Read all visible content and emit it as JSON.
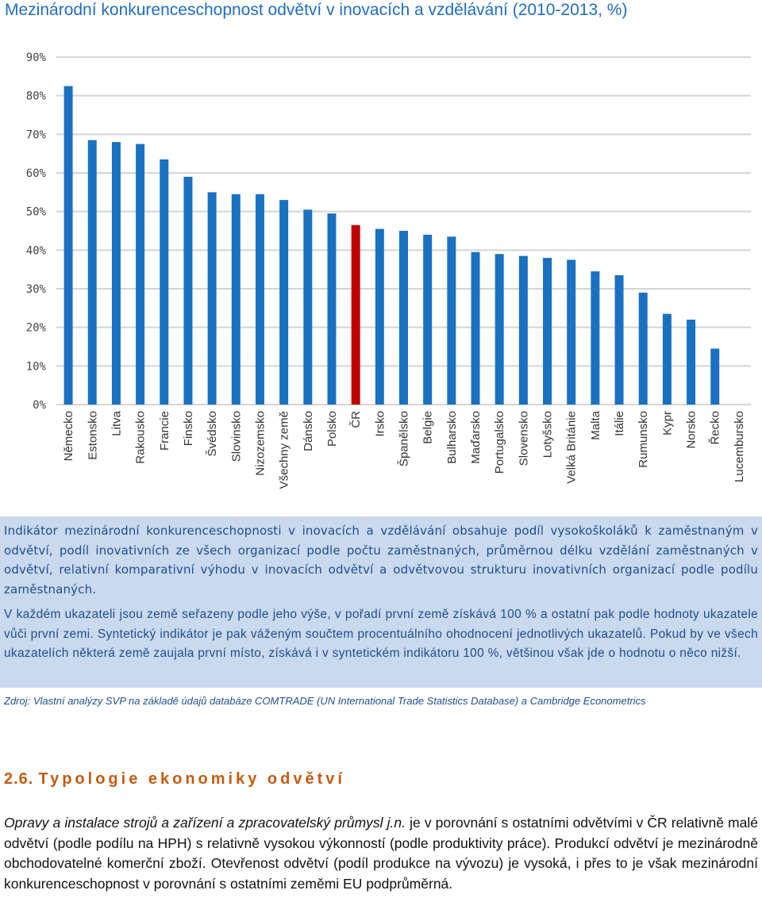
{
  "colors": {
    "title": "#1f6dbf",
    "bar": "#1a71c2",
    "bar_highlight": "#c00000",
    "info_bg": "#c9d9ee",
    "info_text": "#1f4e8c",
    "heading": "#c55a11"
  },
  "chart_data": {
    "type": "bar",
    "title": "Mezinárodní konkurenceschopnost odvětví v inovacích a vzdělávání (2010-2013, %)",
    "xlabel": "",
    "ylabel": "",
    "ylim": [
      0,
      90
    ],
    "yticks": [
      "0%",
      "10%",
      "20%",
      "30%",
      "40%",
      "50%",
      "60%",
      "70%",
      "80%",
      "90%"
    ],
    "grid": true,
    "categories": [
      "Německo",
      "Estonsko",
      "Litva",
      "Rakousko",
      "Francie",
      "Finsko",
      "Švédsko",
      "Slovinsko",
      "Nizozemsko",
      "Všechny země",
      "Dánsko",
      "Polsko",
      "ČR",
      "Irsko",
      "Španělsko",
      "Belgie",
      "Bulharsko",
      "Maďarsko",
      "Portugalsko",
      "Slovensko",
      "Lotyšsko",
      "Velká Británie",
      "Malta",
      "Itálie",
      "Rumunsko",
      "Kypr",
      "Norsko",
      "Řecko",
      "Lucembursko"
    ],
    "values": [
      82.5,
      68.5,
      68,
      67.5,
      63.5,
      59,
      55,
      54.5,
      54.5,
      53,
      50.5,
      49.5,
      46.5,
      45.5,
      45,
      44,
      43.5,
      39.5,
      39,
      38.5,
      38,
      37.5,
      34.5,
      33.5,
      29,
      23.5,
      22,
      14.5,
      0
    ],
    "highlight": "ČR"
  },
  "info": {
    "paragraph1": "Indikátor mezinárodní konkurenceschopnosti v inovacích a vzdělávání obsahuje podíl vysokoškoláků k zaměstnaným v odvětví, podíl inovativních ze všech organizací podle počtu zaměstnaných, průměrnou délku vzdělání zaměstnaných v odvětví, relativní komparativní výhodu v inovacích odvětví a odvětvovou strukturu inovativních organizací podle podílu zaměstnaných.",
    "paragraph2": "V každém ukazateli jsou země seřazeny podle jeho výše, v pořadí první země získává 100 % a ostatní pak podle hodnoty ukazatele vůči první zemi. Syntetický indikátor je pak váženým součtem procentuálního ohodnocení jednotlivých ukazatelů. Pokud by ve všech ukazatelích některá země zaujala první místo, získává i v syntetickém indikátoru 100 %, většinou však jde o hodnotu o něco nižší."
  },
  "source": "Zdroj: Vlastní analýzy SVP na základě údajů databáze COMTRADE (UN International Trade Statistics Database) a Cambridge Econometrics",
  "section": {
    "number": "2.6.",
    "title": "Typologie ekonomiky odvětví"
  },
  "body": {
    "sector": "Opravy a instalace strojů a zařízení a zpracovatelský průmysl j.n.",
    "text": " je v porovnání s ostatními odvětvími v ČR relativně malé odvětví (podle podílu na HPH) s relativně vysokou výkonností (podle produktivity práce). Produkcí odvětví je mezinárodně obchodovatelné komerční zboží. Otevřenost odvětví (podíl produkce na vývozu) je vysoká, i přes to je však mezinárodní konkurenceschopnost v porovnání s ostatními zeměmi EU podprůměrná."
  }
}
